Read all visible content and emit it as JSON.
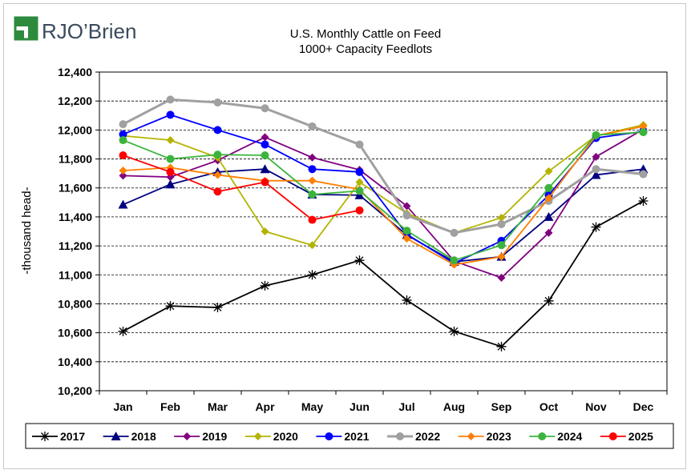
{
  "logo": {
    "text": "RJO’Brien",
    "mark_color": "#2e8b3e"
  },
  "chart_data": {
    "type": "line",
    "title": "U.S. Monthly Cattle on Feed",
    "subtitle": "1000+ Capacity Feedlots",
    "ylabel": "-thousand head-",
    "xlabel": "",
    "categories": [
      "Jan",
      "Feb",
      "Mar",
      "Apr",
      "May",
      "Jun",
      "Jul",
      "Aug",
      "Sep",
      "Oct",
      "Nov",
      "Dec"
    ],
    "ylim": [
      10200,
      12400
    ],
    "yticks": [
      10200,
      10400,
      10600,
      10800,
      11000,
      11200,
      11400,
      11600,
      11800,
      12000,
      12200,
      12400
    ],
    "ytick_labels": [
      "10,200",
      "10,400",
      "10,600",
      "10,800",
      "11,000",
      "11,200",
      "11,400",
      "11,600",
      "11,800",
      "12,000",
      "12,200",
      "12,400"
    ],
    "grid": "horizontal-dashed",
    "legend_position": "bottom",
    "series": [
      {
        "name": "2017",
        "color": "#000000",
        "marker": "star",
        "values": [
          10610,
          10785,
          10775,
          10925,
          11000,
          11100,
          10825,
          10610,
          10505,
          10820,
          11330,
          11510
        ]
      },
      {
        "name": "2018",
        "color": "#00007f",
        "marker": "triangle",
        "values": [
          11485,
          11625,
          11710,
          11730,
          11555,
          11550,
          11275,
          11090,
          11125,
          11400,
          11690,
          11730
        ]
      },
      {
        "name": "2019",
        "color": "#800080",
        "marker": "diamond",
        "values": [
          11685,
          11675,
          11790,
          11950,
          11810,
          11725,
          11475,
          11095,
          10980,
          11290,
          11815,
          12005
        ]
      },
      {
        "name": "2020",
        "color": "#b4b400",
        "marker": "diamond",
        "values": [
          11960,
          11930,
          11810,
          11300,
          11205,
          11640,
          11425,
          11290,
          11395,
          11715,
          11960,
          12035
        ]
      },
      {
        "name": "2021",
        "color": "#0000ff",
        "marker": "circle",
        "values": [
          11970,
          12105,
          12000,
          11900,
          11730,
          11710,
          11280,
          11080,
          11235,
          11550,
          11945,
          11990
        ]
      },
      {
        "name": "2022",
        "color": "#a0a0a0",
        "marker": "circle",
        "values": [
          12040,
          12210,
          12190,
          12150,
          12025,
          11900,
          11410,
          11290,
          11350,
          11510,
          11730,
          11695
        ]
      },
      {
        "name": "2023",
        "color": "#ff7f00",
        "marker": "diamond",
        "values": [
          11720,
          11740,
          11690,
          11650,
          11650,
          11590,
          11250,
          11070,
          11125,
          11530,
          11960,
          12025
        ]
      },
      {
        "name": "2024",
        "color": "#3cb43c",
        "marker": "circle",
        "values": [
          11930,
          11800,
          11830,
          11825,
          11555,
          11580,
          11305,
          11100,
          11205,
          11600,
          11965,
          11985
        ]
      },
      {
        "name": "2025",
        "color": "#ff0000",
        "marker": "circle",
        "values": [
          11825,
          11710,
          11575,
          11640,
          11380,
          11445,
          null,
          null,
          null,
          null,
          null,
          null
        ]
      }
    ]
  }
}
